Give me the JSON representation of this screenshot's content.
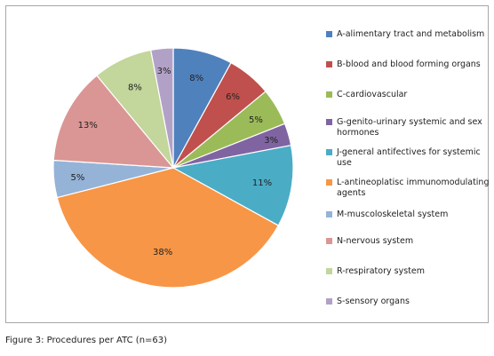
{
  "chart_data": {
    "type": "pie",
    "categories": [
      "A-alimentary tract and metabolism",
      "B-blood and blood forming organs",
      "C-cardiovascular",
      "G-genito-urinary systemic and sex hormones",
      "J-general antifectives for systemic use",
      "L-antineoplatisc immunomodulating agents",
      "M-muscoloskeletal system",
      "N-nervous system",
      "R-respiratory system",
      "S-sensory organs"
    ],
    "values": [
      8,
      6,
      5,
      3,
      11,
      38,
      5,
      13,
      8,
      3
    ],
    "labels": [
      "8%",
      "6%",
      "5%",
      "3%",
      "11%",
      "38%",
      "5%",
      "13%",
      "8%",
      "3%"
    ],
    "colors": [
      "#4f81bd",
      "#c0504d",
      "#9bbb59",
      "#8064a2",
      "#4bacc6",
      "#f79646",
      "#95b3d7",
      "#da9694",
      "#c3d69b",
      "#b2a1c7"
    ],
    "legend_position": "right"
  },
  "caption": "Figure 3: Procedures per ATC (n=63)"
}
